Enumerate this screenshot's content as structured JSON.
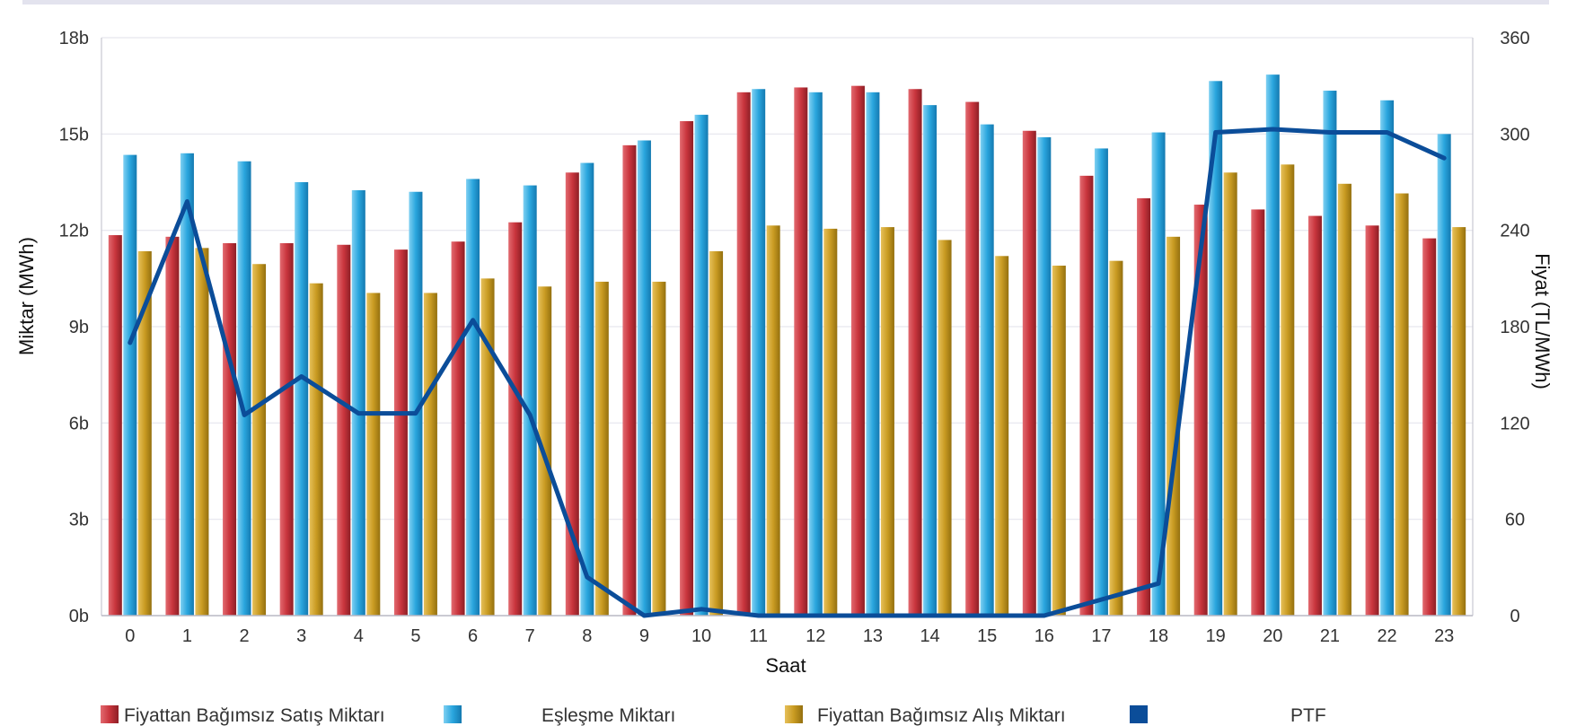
{
  "chart_data": {
    "type": "bar",
    "xlabel": "Saat",
    "ylabel_left": "Miktar (MWh)",
    "ylabel_right": "Fiyat (TL/MWh)",
    "categories": [
      "0",
      "1",
      "2",
      "3",
      "4",
      "5",
      "6",
      "7",
      "8",
      "9",
      "10",
      "11",
      "12",
      "13",
      "14",
      "15",
      "16",
      "17",
      "18",
      "19",
      "20",
      "21",
      "22",
      "23"
    ],
    "ylim_left": [
      0,
      18000
    ],
    "ylim_right": [
      0,
      360
    ],
    "left_ticks": [
      {
        "value": 0,
        "label": "0b"
      },
      {
        "value": 3000,
        "label": "3b"
      },
      {
        "value": 6000,
        "label": "6b"
      },
      {
        "value": 9000,
        "label": "9b"
      },
      {
        "value": 12000,
        "label": "12b"
      },
      {
        "value": 15000,
        "label": "15b"
      },
      {
        "value": 18000,
        "label": "18b"
      }
    ],
    "right_ticks": [
      {
        "value": 0,
        "label": "0"
      },
      {
        "value": 60,
        "label": "60"
      },
      {
        "value": 120,
        "label": "120"
      },
      {
        "value": 180,
        "label": "180"
      },
      {
        "value": 240,
        "label": "240"
      },
      {
        "value": 300,
        "label": "300"
      },
      {
        "value": 360,
        "label": "360"
      }
    ],
    "grid": true,
    "legend_position": "bottom",
    "series": [
      {
        "name": "Fiyattan Bağımsız Satış Miktarı",
        "kind": "bar",
        "axis": "left",
        "color": "#c9353d",
        "values": [
          11850,
          11800,
          11600,
          11600,
          11550,
          11400,
          11650,
          12250,
          13800,
          14650,
          15400,
          16300,
          16450,
          16500,
          16400,
          16000,
          15100,
          13700,
          13000,
          12800,
          12650,
          12450,
          12150,
          11750
        ]
      },
      {
        "name": "Eşleşme Miktarı",
        "kind": "bar",
        "axis": "left",
        "color": "#2aa6de",
        "values": [
          14350,
          14400,
          14150,
          13500,
          13250,
          13200,
          13600,
          13400,
          14100,
          14800,
          15600,
          16400,
          16300,
          16300,
          15900,
          15300,
          14900,
          14550,
          15050,
          16650,
          16850,
          16350,
          16050,
          15000
        ]
      },
      {
        "name": "Fiyattan Bağımsız Alış Miktarı",
        "kind": "bar",
        "axis": "left",
        "color": "#c99b22",
        "values": [
          11350,
          11450,
          10950,
          10350,
          10050,
          10050,
          10500,
          10250,
          10400,
          10400,
          11350,
          12150,
          12050,
          12100,
          11700,
          11200,
          10900,
          11050,
          11800,
          13800,
          14050,
          13450,
          13150,
          12100
        ]
      },
      {
        "name": "PTF",
        "kind": "line",
        "axis": "right",
        "color": "#0b4d99",
        "values": [
          170,
          258,
          125,
          149,
          126,
          126,
          184,
          125,
          24,
          0,
          4,
          0,
          0,
          0,
          0,
          0,
          0,
          10,
          20,
          301,
          303,
          301,
          301,
          285
        ]
      }
    ]
  }
}
